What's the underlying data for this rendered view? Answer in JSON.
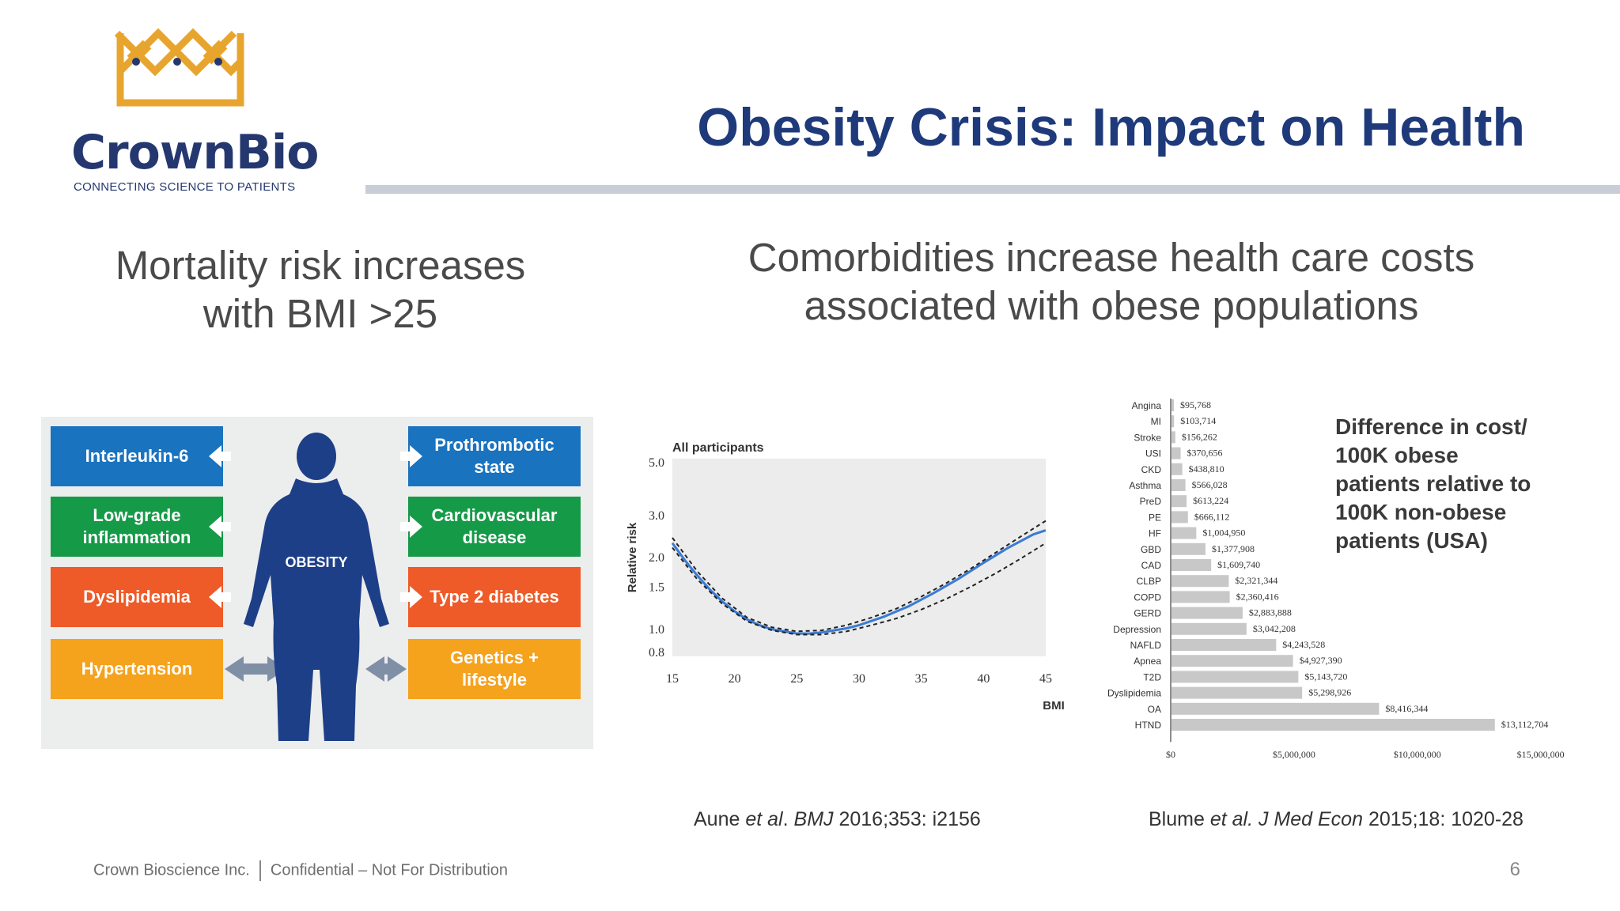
{
  "brand": {
    "name": "CrownBio",
    "tagline": "CONNECTING SCIENCE TO PATIENTS",
    "gold": "#e8a52e",
    "navy": "#24386f"
  },
  "title": "Obesity Crisis: Impact on Health",
  "left_heading": {
    "line1": "Mortality risk increases",
    "line2": "with BMI >25"
  },
  "right_heading": {
    "line1": "Comorbidities increase health care costs",
    "line2": "associated with obese populations"
  },
  "obesity_graphic": {
    "center_label": "OBESITY",
    "left_boxes": [
      {
        "line1": "Interleukin-6",
        "line2": ""
      },
      {
        "line1": "Low-grade",
        "line2": "inflammation"
      },
      {
        "line1": "Dyslipidemia",
        "line2": ""
      },
      {
        "line1": "Hypertension",
        "line2": ""
      }
    ],
    "right_boxes": [
      {
        "line1": "Prothrombotic",
        "line2": "state"
      },
      {
        "line1": "Cardiovascular",
        "line2": "disease"
      },
      {
        "line1": "Type 2 diabetes",
        "line2": ""
      },
      {
        "line1": "Genetics +",
        "line2": "lifestyle"
      }
    ],
    "colors": [
      "#1a73bf",
      "#159a47",
      "#ee5a28",
      "#f5a21d"
    ]
  },
  "chart_data": [
    {
      "type": "line",
      "title": "All participants",
      "xlabel": "BMI",
      "ylabel": "Relative risk",
      "x_ticks": [
        15,
        20,
        25,
        30,
        35,
        40,
        45
      ],
      "y_ticks": [
        0.8,
        1.0,
        1.5,
        2.0,
        3.0,
        5.0
      ],
      "y_scale": "log",
      "xlim": [
        15,
        45
      ],
      "ylim": [
        0.8,
        5.0
      ],
      "series": [
        {
          "name": "estimate",
          "x": [
            15,
            16,
            17,
            18,
            19,
            20,
            21,
            22,
            23,
            24,
            25,
            26,
            27,
            28,
            29,
            30,
            32,
            34,
            36,
            38,
            40,
            42,
            44,
            45
          ],
          "y": [
            2.3,
            1.95,
            1.68,
            1.47,
            1.31,
            1.19,
            1.1,
            1.04,
            1.0,
            0.98,
            0.96,
            0.96,
            0.97,
            0.99,
            1.01,
            1.04,
            1.13,
            1.25,
            1.42,
            1.63,
            1.9,
            2.2,
            2.5,
            2.6
          ]
        },
        {
          "name": "upper CI",
          "x": [
            15,
            17,
            19,
            21,
            23,
            25,
            27,
            29,
            31,
            33,
            35,
            37,
            39,
            41,
            43,
            45
          ],
          "y": [
            2.42,
            1.75,
            1.35,
            1.12,
            1.02,
            0.98,
            0.99,
            1.04,
            1.12,
            1.22,
            1.37,
            1.56,
            1.8,
            2.1,
            2.45,
            2.85
          ]
        },
        {
          "name": "lower CI",
          "x": [
            15,
            17,
            19,
            21,
            23,
            25,
            27,
            29,
            31,
            33,
            35,
            37,
            39,
            41,
            43,
            45
          ],
          "y": [
            2.2,
            1.62,
            1.28,
            1.08,
            0.99,
            0.95,
            0.95,
            0.98,
            1.04,
            1.11,
            1.21,
            1.34,
            1.51,
            1.72,
            1.98,
            2.3
          ]
        }
      ]
    },
    {
      "type": "bar",
      "orientation": "horizontal",
      "categories": [
        "Angina",
        "MI",
        "Stroke",
        "USI",
        "CKD",
        "Asthma",
        "PreD",
        "PE",
        "HF",
        "GBD",
        "CAD",
        "CLBP",
        "COPD",
        "GERD",
        "Depression",
        "NAFLD",
        "Apnea",
        "T2D",
        "Dyslipidemia",
        "OA",
        "HTND"
      ],
      "values": [
        95768,
        103714,
        156262,
        370656,
        438810,
        566028,
        613224,
        666112,
        1004950,
        1377908,
        1609740,
        2321344,
        2360416,
        2883888,
        3042208,
        4243528,
        4927390,
        5143720,
        5298926,
        8416344,
        13112704
      ],
      "value_labels": [
        "$95,768",
        "$103,714",
        "$156,262",
        "$370,656",
        "$438,810",
        "$566,028",
        "$613,224",
        "$666,112",
        "$1,004,950",
        "$1,377,908",
        "$1,609,740",
        "$2,321,344",
        "$2,360,416",
        "$2,883,888",
        "$3,042,208",
        "$4,243,528",
        "$4,927,390",
        "$5,143,720",
        "$5,298,926",
        "$8,416,344",
        "$13,112,704"
      ],
      "x_ticks": [
        0,
        5000000,
        10000000,
        15000000
      ],
      "x_tick_labels": [
        "$0",
        "$5,000,000",
        "$10,000,000",
        "$15,000,000"
      ],
      "xlim": [
        0,
        17000000
      ],
      "bar_color": "#c8c8c8"
    }
  ],
  "cost_note": {
    "line1": "Difference in cost/",
    "line2": "100K obese",
    "line3": "patients relative to",
    "line4": "100K non-obese",
    "line5": "patients (USA)"
  },
  "citations": {
    "left": {
      "authors": "Aune",
      "etal": "et al",
      "dot": ".",
      "journal": "BMJ",
      "rest": "2016;353: i2156"
    },
    "right": {
      "authors": "Blume",
      "etal": "et al.",
      "journal": "J Med Econ",
      "rest": "2015;18: 1020-28"
    }
  },
  "footer": {
    "company": "Crown Bioscience Inc.",
    "notice": "Confidential – Not For Distribution",
    "page": "6"
  }
}
